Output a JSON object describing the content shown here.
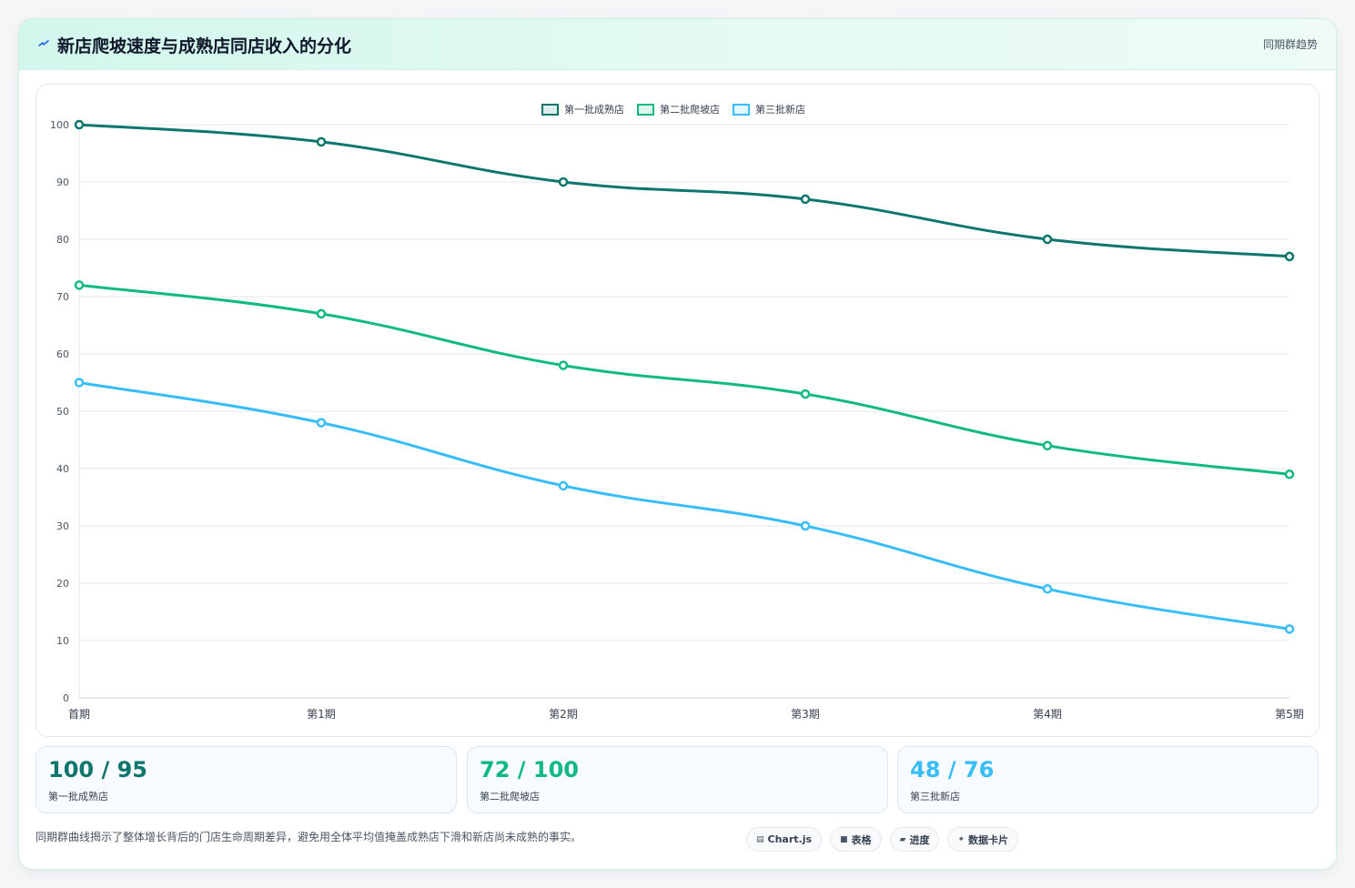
{
  "header": {
    "title": "新店爬坡速度与成熟店同店收入的分化",
    "tag": "同期群趋势",
    "icon": "lightning-icon"
  },
  "chart_data": {
    "type": "line",
    "categories": [
      "首期",
      "第1期",
      "第2期",
      "第3期",
      "第4期",
      "第5期"
    ],
    "ylim": [
      0,
      100
    ],
    "yticks": [
      0,
      10,
      20,
      30,
      40,
      50,
      60,
      70,
      80,
      90,
      100
    ],
    "grid": true,
    "legend_position": "top-center",
    "series": [
      {
        "name": "第一批成熟店",
        "color": "#0f766e",
        "values": [
          100,
          97,
          90,
          87,
          80,
          77
        ]
      },
      {
        "name": "第二批爬坡店",
        "color": "#10b981",
        "values": [
          72,
          67,
          58,
          53,
          44,
          39
        ]
      },
      {
        "name": "第三批新店",
        "color": "#38bdf8",
        "values": [
          55,
          48,
          37,
          30,
          19,
          12
        ]
      }
    ]
  },
  "stats": [
    {
      "value": "100 / 95",
      "label": "第一批成熟店",
      "color": "#0f766e"
    },
    {
      "value": "72 / 100",
      "label": "第二批爬坡店",
      "color": "#10b981"
    },
    {
      "value": "48 / 76",
      "label": "第三批新店",
      "color": "#38bdf8"
    }
  ],
  "footnote": "同期群曲线揭示了整体增长背后的门店生命周期差异，避免用全体平均值掩盖成熟店下滑和新店尚未成熟的事实。",
  "pills": [
    {
      "icon": "chart-icon",
      "glyph": "▤",
      "label": "Chart.js"
    },
    {
      "icon": "table-icon",
      "glyph": "■",
      "label": "表格"
    },
    {
      "icon": "progress-icon",
      "glyph": "▰",
      "label": "进度"
    },
    {
      "icon": "card-icon",
      "glyph": "✦",
      "label": "数据卡片"
    }
  ]
}
